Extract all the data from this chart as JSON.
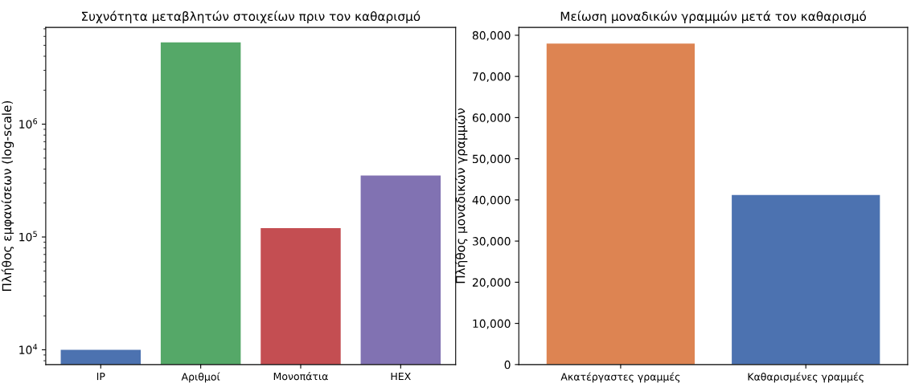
{
  "chart_data": [
    {
      "type": "bar",
      "title": "Συχνότητα μεταβλητών στοιχείων πριν τον καθαρισμό",
      "ylabel": "Πλήθος εμφανίσεων (log-scale)",
      "categories": [
        "IP",
        "Αριθμοί",
        "Μονοπάτια",
        "HEX"
      ],
      "values": [
        10000,
        5300000,
        120000,
        350000
      ],
      "colors": [
        "#4c72b0",
        "#55a868",
        "#c44e52",
        "#8172b2"
      ],
      "log": true,
      "ylim": [
        7400,
        7200000
      ],
      "yticks": [
        {
          "value": 10000,
          "label": "10$^{4}$"
        },
        {
          "value": 100000,
          "label": "10$^{5}$"
        },
        {
          "value": 1000000,
          "label": "10$^{6}$"
        }
      ],
      "grid": false,
      "legend": false
    },
    {
      "type": "bar",
      "title": "Μείωση μοναδικών γραμμών μετά τον καθαρισμό",
      "ylabel": "Πλήθος μοναδικών γραμμών",
      "categories": [
        "Ακατέργαστες γραμμές",
        "Καθαρισμένες γραμμές"
      ],
      "values": [
        78000,
        41200
      ],
      "colors": [
        "#dd8452",
        "#4c72b0"
      ],
      "ylim": [
        0,
        81900
      ],
      "yticks": [
        {
          "value": 0,
          "label": "0"
        },
        {
          "value": 10000,
          "label": "10,000"
        },
        {
          "value": 20000,
          "label": "20,000"
        },
        {
          "value": 30000,
          "label": "30,000"
        },
        {
          "value": 40000,
          "label": "40,000"
        },
        {
          "value": 50000,
          "label": "50,000"
        },
        {
          "value": 60000,
          "label": "60,000"
        },
        {
          "value": 70000,
          "label": "70,000"
        },
        {
          "value": 80000,
          "label": "80,000"
        }
      ],
      "grid": false,
      "legend": false
    }
  ]
}
